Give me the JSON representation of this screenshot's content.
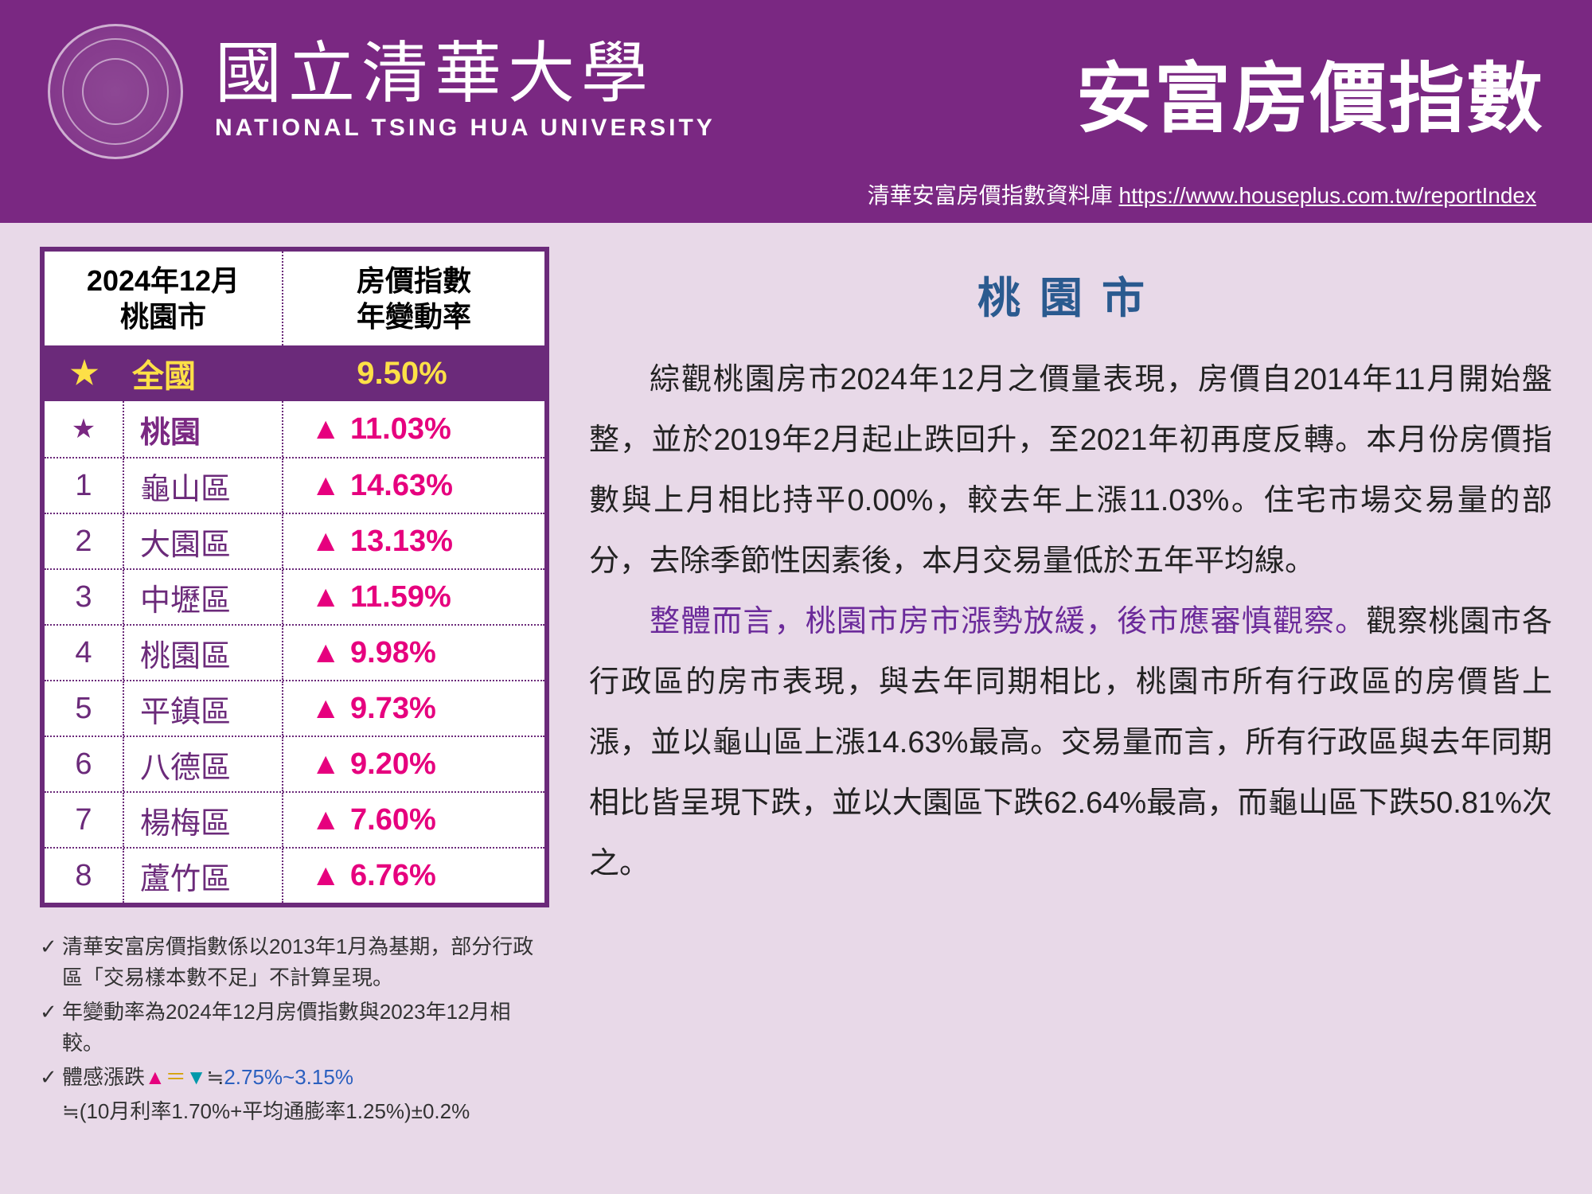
{
  "header": {
    "uni_cn": "國立清華大學",
    "uni_en": "NATIONAL TSING HUA UNIVERSITY",
    "title": "安富房價指數",
    "db_label": "清華安富房價指數資料庫",
    "db_url": "https://www.houseplus.com.tw/reportIndex"
  },
  "table": {
    "header_left_l1": "2024年12月",
    "header_left_l2": "桃園市",
    "header_right_l1": "房價指數",
    "header_right_l2": "年變動率",
    "national": {
      "star": "★",
      "label": "全國",
      "value": "9.50%"
    },
    "rows": [
      {
        "rank": "★",
        "name": "桃園",
        "arrow": "▲",
        "value": "11.03%",
        "city": true
      },
      {
        "rank": "1",
        "name": "龜山區",
        "arrow": "▲",
        "value": "14.63%"
      },
      {
        "rank": "2",
        "name": "大園區",
        "arrow": "▲",
        "value": "13.13%"
      },
      {
        "rank": "3",
        "name": "中壢區",
        "arrow": "▲",
        "value": "11.59%"
      },
      {
        "rank": "4",
        "name": "桃園區",
        "arrow": "▲",
        "value": "9.98%"
      },
      {
        "rank": "5",
        "name": "平鎮區",
        "arrow": "▲",
        "value": "9.73%"
      },
      {
        "rank": "6",
        "name": "八德區",
        "arrow": "▲",
        "value": "9.20%"
      },
      {
        "rank": "7",
        "name": "楊梅區",
        "arrow": "▲",
        "value": "7.60%"
      },
      {
        "rank": "8",
        "name": "蘆竹區",
        "arrow": "▲",
        "value": "6.76%"
      }
    ]
  },
  "notes": {
    "n1": "清華安富房價指數係以2013年1月為基期，部分行政區「交易樣本數不足」不計算呈現。",
    "n2": "年變動率為2024年12月房價指數與2023年12月相較。",
    "n3_a": "體感漲跌",
    "n3_up": "▲",
    "n3_eq": "＝",
    "n3_dn": "▼",
    "n3_b": "≒",
    "n3_range": "2.75%~3.15%",
    "n4": "≒(10月利率1.70%+平均通膨率1.25%)±0.2%"
  },
  "article": {
    "city_title": "桃園市",
    "p1": "綜觀桃園房市2024年12月之價量表現，房價自2014年11月開始盤整，並於2019年2月起止跌回升，至2021年初再度反轉。本月份房價指數與上月相比持平0.00%，較去年上漲11.03%。住宅市場交易量的部分，去除季節性因素後，本月交易量低於五年平均線。",
    "p2_hl": "整體而言，桃園市房市漲勢放緩，後市應審慎觀察。",
    "p2_rest": "觀察桃園市各行政區的房市表現，與去年同期相比，桃園市所有行政區的房價皆上漲，並以龜山區上漲14.63%最高。交易量而言，所有行政區與去年同期相比皆呈現下跌，並以大園區下跌62.64%最高，而龜山區下跌50.81%次之。"
  },
  "colors": {
    "header_bg": "#7a2882",
    "body_bg": "#e8d9e8",
    "table_border": "#6b2a7a",
    "national_text": "#fde047",
    "up_color": "#e6007e",
    "article_title": "#2a5a8f",
    "highlight": "#6b2a9a"
  }
}
